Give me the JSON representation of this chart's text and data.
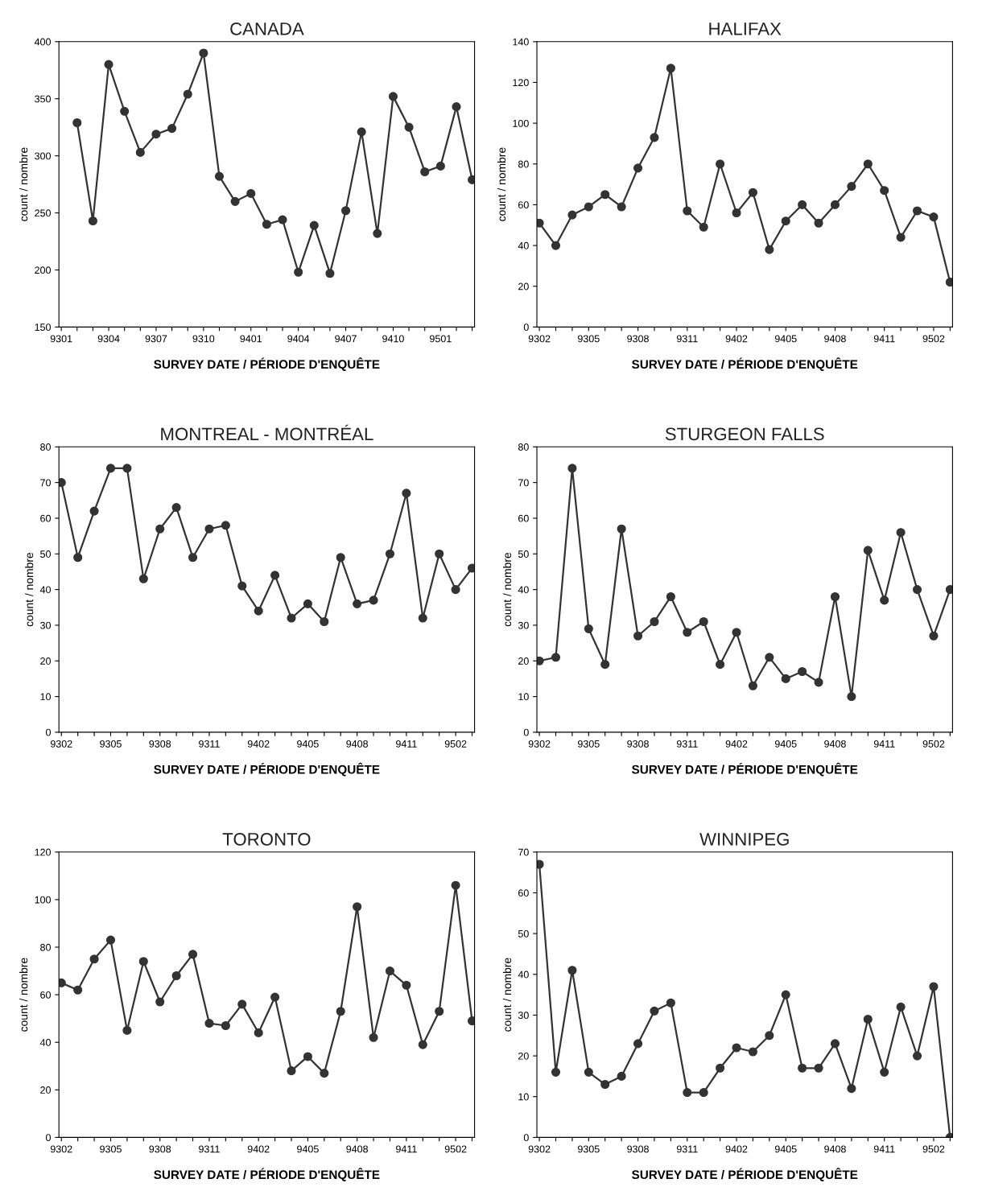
{
  "chart_data": [
    {
      "type": "line",
      "title": "CANADA",
      "xlabel": "SURVEY DATE / PÉRIODE D'ENQUÊTE",
      "ylabel": "count / nombre",
      "categories": [
        "9301",
        null,
        null,
        "9304",
        null,
        null,
        "9307",
        null,
        null,
        "9310",
        null,
        null,
        "9401",
        null,
        null,
        "9404",
        null,
        null,
        "9407",
        null,
        null,
        "9410",
        null,
        null,
        "9501",
        null,
        null
      ],
      "series": [
        {
          "color": "#333333",
          "values": [
            null,
            329,
            243,
            380,
            339,
            303,
            319,
            324,
            354,
            390,
            282,
            260,
            267,
            240,
            244,
            198,
            239,
            197,
            252,
            321,
            232,
            352,
            325,
            286,
            291,
            343,
            279
          ]
        }
      ],
      "ylim": [
        150,
        400
      ],
      "yticks": [
        150,
        200,
        250,
        300,
        350,
        400
      ],
      "marker": "circle",
      "line_style": "solid",
      "grid": false,
      "legend": false
    },
    {
      "type": "line",
      "title": "HALIFAX",
      "xlabel": "SURVEY DATE / PÉRIODE D'ENQUÊTE",
      "ylabel": "count / nombre",
      "categories": [
        "9302",
        null,
        null,
        "9305",
        null,
        null,
        "9308",
        null,
        null,
        "9311",
        null,
        null,
        "9402",
        null,
        null,
        "9405",
        null,
        null,
        "9408",
        null,
        null,
        "9411",
        null,
        null,
        "9502",
        null
      ],
      "series": [
        {
          "color": "#333333",
          "values": [
            51,
            40,
            55,
            59,
            65,
            59,
            78,
            93,
            127,
            57,
            49,
            80,
            56,
            66,
            38,
            52,
            60,
            51,
            60,
            69,
            80,
            67,
            44,
            57,
            54,
            22
          ]
        }
      ],
      "ylim": [
        0,
        140
      ],
      "yticks": [
        0,
        20,
        40,
        60,
        80,
        100,
        120,
        140
      ],
      "marker": "circle",
      "line_style": "solid",
      "grid": false,
      "legend": false
    },
    {
      "type": "line",
      "title": "MONTREAL - MONTRÉAL",
      "xlabel": "SURVEY DATE / PÉRIODE D'ENQUÊTE",
      "ylabel": "count / nombre",
      "categories": [
        "9302",
        null,
        null,
        "9305",
        null,
        null,
        "9308",
        null,
        null,
        "9311",
        null,
        null,
        "9402",
        null,
        null,
        "9405",
        null,
        null,
        "9408",
        null,
        null,
        "9411",
        null,
        null,
        "9502",
        null
      ],
      "series": [
        {
          "color": "#333333",
          "values": [
            70,
            49,
            62,
            74,
            74,
            43,
            57,
            63,
            49,
            57,
            58,
            41,
            34,
            44,
            32,
            36,
            31,
            49,
            36,
            37,
            50,
            67,
            32,
            50,
            40,
            46
          ]
        }
      ],
      "ylim": [
        0,
        80
      ],
      "yticks": [
        0,
        10,
        20,
        30,
        40,
        50,
        60,
        70,
        80
      ],
      "marker": "circle",
      "line_style": "solid",
      "grid": false,
      "legend": false
    },
    {
      "type": "line",
      "title": "STURGEON FALLS",
      "xlabel": "SURVEY DATE / PÉRIODE D'ENQUÊTE",
      "ylabel": "count / nombre",
      "categories": [
        "9302",
        null,
        null,
        "9305",
        null,
        null,
        "9308",
        null,
        null,
        "9311",
        null,
        null,
        "9402",
        null,
        null,
        "9405",
        null,
        null,
        "9408",
        null,
        null,
        "9411",
        null,
        null,
        "9502",
        null
      ],
      "series": [
        {
          "color": "#333333",
          "values": [
            20,
            21,
            74,
            29,
            19,
            57,
            27,
            31,
            38,
            28,
            31,
            19,
            28,
            13,
            21,
            15,
            17,
            14,
            38,
            10,
            51,
            37,
            56,
            40,
            27,
            40
          ]
        }
      ],
      "ylim": [
        0,
        80
      ],
      "yticks": [
        0,
        10,
        20,
        30,
        40,
        50,
        60,
        70,
        80
      ],
      "marker": "circle",
      "line_style": "solid",
      "grid": false,
      "legend": false
    },
    {
      "type": "line",
      "title": "TORONTO",
      "xlabel": "SURVEY DATE / PÉRIODE D'ENQUÊTE",
      "ylabel": "count / nombre",
      "categories": [
        "9302",
        null,
        null,
        "9305",
        null,
        null,
        "9308",
        null,
        null,
        "9311",
        null,
        null,
        "9402",
        null,
        null,
        "9405",
        null,
        null,
        "9408",
        null,
        null,
        "9411",
        null,
        null,
        "9502",
        null
      ],
      "series": [
        {
          "color": "#333333",
          "values": [
            65,
            62,
            75,
            83,
            45,
            74,
            57,
            68,
            77,
            48,
            47,
            56,
            44,
            59,
            28,
            34,
            27,
            53,
            97,
            42,
            70,
            64,
            39,
            53,
            106,
            49
          ]
        }
      ],
      "ylim": [
        0,
        120
      ],
      "yticks": [
        0,
        20,
        40,
        60,
        80,
        100,
        120
      ],
      "marker": "circle",
      "line_style": "solid",
      "grid": false,
      "legend": false
    },
    {
      "type": "line",
      "title": "WINNIPEG",
      "xlabel": "SURVEY DATE / PÉRIODE D'ENQUÊTE",
      "ylabel": "count / nombre",
      "categories": [
        "9302",
        null,
        null,
        "9305",
        null,
        null,
        "9308",
        null,
        null,
        "9311",
        null,
        null,
        "9402",
        null,
        null,
        "9405",
        null,
        null,
        "9408",
        null,
        null,
        "9411",
        null,
        null,
        "9502",
        null
      ],
      "series": [
        {
          "color": "#333333",
          "values": [
            67,
            16,
            41,
            16,
            13,
            15,
            23,
            31,
            33,
            11,
            11,
            17,
            22,
            21,
            25,
            35,
            17,
            17,
            23,
            12,
            29,
            16,
            32,
            20,
            37,
            0
          ]
        }
      ],
      "ylim": [
        0,
        70
      ],
      "yticks": [
        0,
        10,
        20,
        30,
        40,
        50,
        60,
        70
      ],
      "marker": "circle",
      "line_style": "solid",
      "grid": false,
      "legend": false
    }
  ]
}
